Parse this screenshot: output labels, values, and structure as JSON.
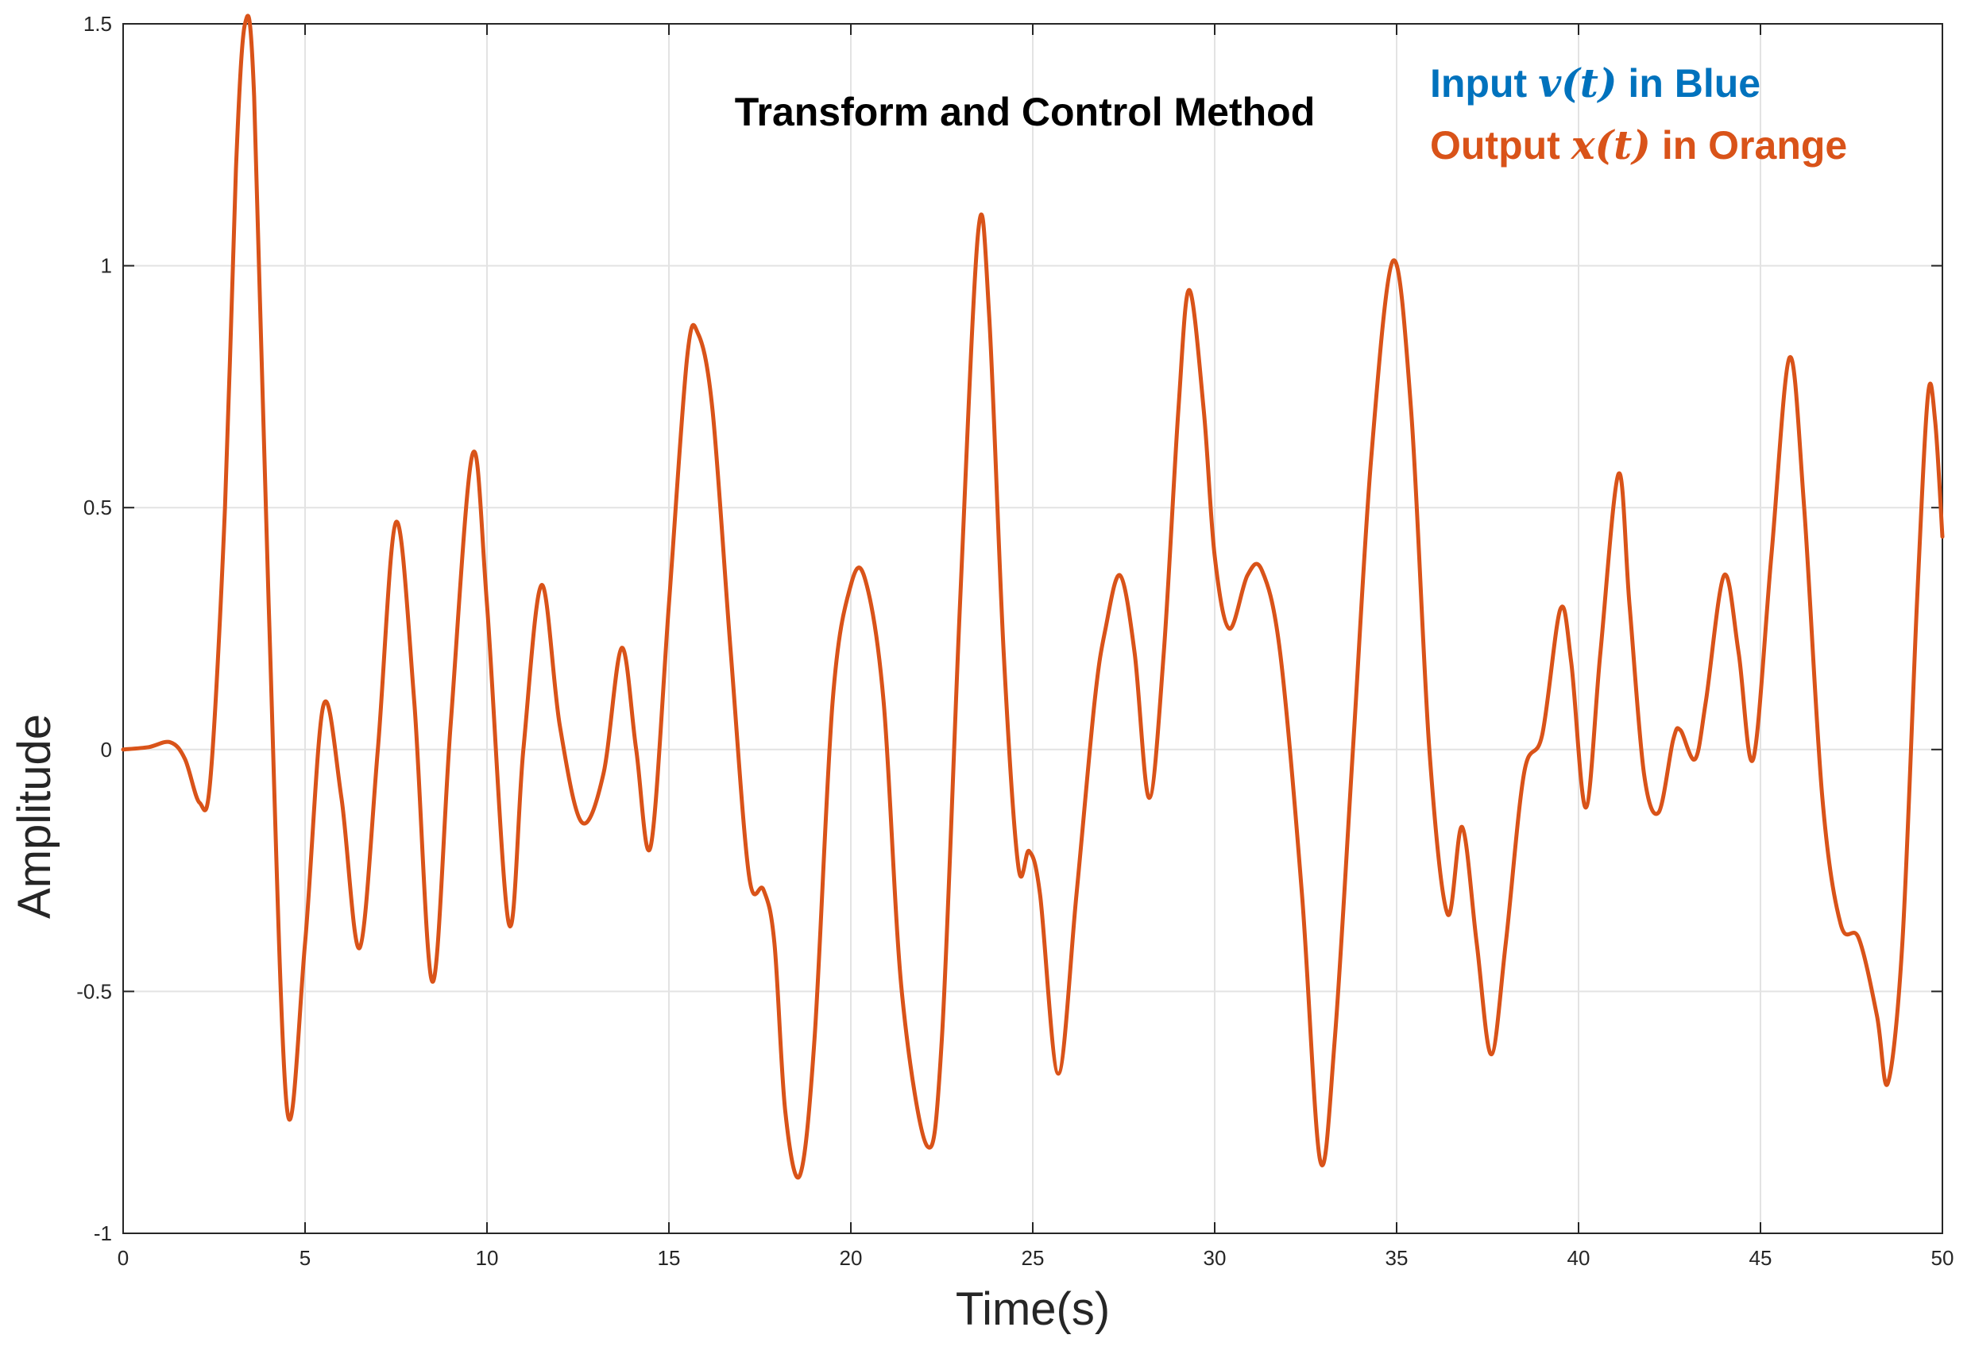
{
  "chart_data": {
    "type": "line",
    "title": "Transform and Control Method",
    "xlabel": "Time(s)",
    "ylabel": "Amplitude",
    "xlim": [
      0,
      50
    ],
    "ylim": [
      -1,
      1.5
    ],
    "grid": true,
    "x_ticks": [
      0,
      5,
      10,
      15,
      20,
      25,
      30,
      35,
      40,
      45,
      50
    ],
    "y_ticks": [
      -1,
      -0.5,
      0,
      0.5,
      1,
      1.5
    ],
    "x_tick_labels": [
      "0",
      "5",
      "10",
      "15",
      "20",
      "25",
      "30",
      "35",
      "40",
      "45",
      "50"
    ],
    "y_tick_labels": [
      "-1",
      "-0.5",
      "0",
      "0.5",
      "1",
      "1.5"
    ],
    "annotations": {
      "input": {
        "prefix": "Input ",
        "symbol": "v(t)",
        "suffix": " in Blue",
        "color": "#0072BD"
      },
      "output": {
        "prefix": "Output ",
        "symbol": "x(t)",
        "suffix": " in Orange",
        "color": "#D95319"
      }
    },
    "series": [
      {
        "line_color": "#D95319",
        "points": [
          [
            0,
            0
          ],
          [
            0.7,
            0.005
          ],
          [
            1.3,
            0.015
          ],
          [
            1.7,
            -0.02
          ],
          [
            2.1,
            -0.11
          ],
          [
            2.4,
            -0.06
          ],
          [
            2.8,
            0.5
          ],
          [
            3.1,
            1.2
          ],
          [
            3.35,
            1.5
          ],
          [
            3.6,
            1.35
          ],
          [
            4.0,
            0.3
          ],
          [
            4.5,
            -0.74
          ],
          [
            5.0,
            -0.4
          ],
          [
            5.5,
            0.09
          ],
          [
            6.0,
            -0.1
          ],
          [
            6.5,
            -0.41
          ],
          [
            7.0,
            0.0
          ],
          [
            7.5,
            0.47
          ],
          [
            8.0,
            0.1
          ],
          [
            8.5,
            -0.48
          ],
          [
            9.0,
            0.05
          ],
          [
            9.6,
            0.61
          ],
          [
            10.0,
            0.3
          ],
          [
            10.6,
            -0.36
          ],
          [
            11.0,
            0.0
          ],
          [
            11.5,
            0.34
          ],
          [
            12.0,
            0.05
          ],
          [
            12.6,
            -0.15
          ],
          [
            13.2,
            -0.05
          ],
          [
            13.7,
            0.21
          ],
          [
            14.1,
            0.0
          ],
          [
            14.5,
            -0.2
          ],
          [
            15.0,
            0.3
          ],
          [
            15.5,
            0.81
          ],
          [
            15.8,
            0.86
          ],
          [
            16.2,
            0.7
          ],
          [
            16.7,
            0.2
          ],
          [
            17.2,
            -0.26
          ],
          [
            17.6,
            -0.29
          ],
          [
            17.9,
            -0.4
          ],
          [
            18.2,
            -0.75
          ],
          [
            18.6,
            -0.88
          ],
          [
            19.0,
            -0.6
          ],
          [
            19.5,
            0.1
          ],
          [
            20.0,
            0.34
          ],
          [
            20.4,
            0.35
          ],
          [
            20.9,
            0.1
          ],
          [
            21.4,
            -0.5
          ],
          [
            22.1,
            -0.82
          ],
          [
            22.5,
            -0.6
          ],
          [
            23.0,
            0.3
          ],
          [
            23.5,
            1.07
          ],
          [
            23.8,
            0.9
          ],
          [
            24.2,
            0.2
          ],
          [
            24.6,
            -0.24
          ],
          [
            24.9,
            -0.21
          ],
          [
            25.2,
            -0.3
          ],
          [
            25.7,
            -0.67
          ],
          [
            26.2,
            -0.3
          ],
          [
            26.7,
            0.1
          ],
          [
            27.0,
            0.25
          ],
          [
            27.4,
            0.36
          ],
          [
            27.8,
            0.2
          ],
          [
            28.2,
            -0.1
          ],
          [
            28.6,
            0.2
          ],
          [
            29.0,
            0.7
          ],
          [
            29.3,
            0.95
          ],
          [
            29.7,
            0.7
          ],
          [
            30.0,
            0.4
          ],
          [
            30.4,
            0.25
          ],
          [
            30.9,
            0.36
          ],
          [
            31.3,
            0.37
          ],
          [
            31.8,
            0.2
          ],
          [
            32.4,
            -0.3
          ],
          [
            32.9,
            -0.85
          ],
          [
            33.3,
            -0.6
          ],
          [
            33.8,
            0.0
          ],
          [
            34.3,
            0.6
          ],
          [
            34.9,
            1.01
          ],
          [
            35.4,
            0.7
          ],
          [
            35.9,
            0.0
          ],
          [
            36.4,
            -0.34
          ],
          [
            36.8,
            -0.16
          ],
          [
            37.2,
            -0.4
          ],
          [
            37.6,
            -0.63
          ],
          [
            38.0,
            -0.4
          ],
          [
            38.5,
            -0.05
          ],
          [
            39.0,
            0.03
          ],
          [
            39.5,
            0.29
          ],
          [
            39.8,
            0.18
          ],
          [
            40.2,
            -0.12
          ],
          [
            40.6,
            0.2
          ],
          [
            41.1,
            0.57
          ],
          [
            41.4,
            0.3
          ],
          [
            41.8,
            -0.05
          ],
          [
            42.2,
            -0.13
          ],
          [
            42.6,
            0.02
          ],
          [
            42.8,
            0.04
          ],
          [
            43.2,
            -0.02
          ],
          [
            43.5,
            0.1
          ],
          [
            44.0,
            0.36
          ],
          [
            44.4,
            0.2
          ],
          [
            44.8,
            -0.02
          ],
          [
            45.3,
            0.4
          ],
          [
            45.8,
            0.81
          ],
          [
            46.2,
            0.5
          ],
          [
            46.7,
            -0.1
          ],
          [
            47.2,
            -0.36
          ],
          [
            47.7,
            -0.39
          ],
          [
            48.2,
            -0.55
          ],
          [
            48.5,
            -0.69
          ],
          [
            48.9,
            -0.4
          ],
          [
            49.3,
            0.3
          ],
          [
            49.6,
            0.73
          ],
          [
            49.8,
            0.68
          ],
          [
            50.0,
            0.44
          ]
        ]
      }
    ]
  }
}
